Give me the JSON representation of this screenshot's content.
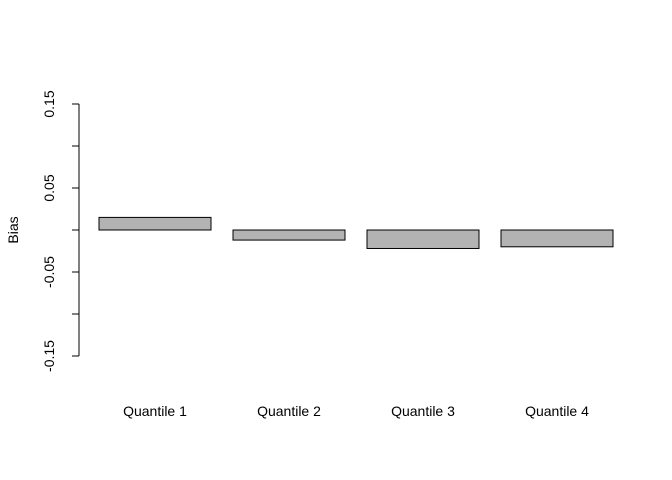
{
  "chart_data": {
    "type": "bar",
    "categories": [
      "Quantile 1",
      "Quantile 2",
      "Quantile 3",
      "Quantile 4"
    ],
    "values": [
      0.015,
      -0.012,
      -0.022,
      -0.02
    ],
    "ylabel": "Bias",
    "ylim": [
      -0.15,
      0.15
    ],
    "yticks": [
      -0.15,
      -0.1,
      -0.05,
      0.0,
      0.05,
      0.1,
      0.15
    ],
    "ytick_labels": [
      "-0.15",
      "",
      "-0.05",
      "",
      "0.05",
      "",
      "0.15"
    ],
    "grid": false,
    "legend": "none",
    "bar_color": "#b3b3b3",
    "bar_border": "#000000"
  }
}
